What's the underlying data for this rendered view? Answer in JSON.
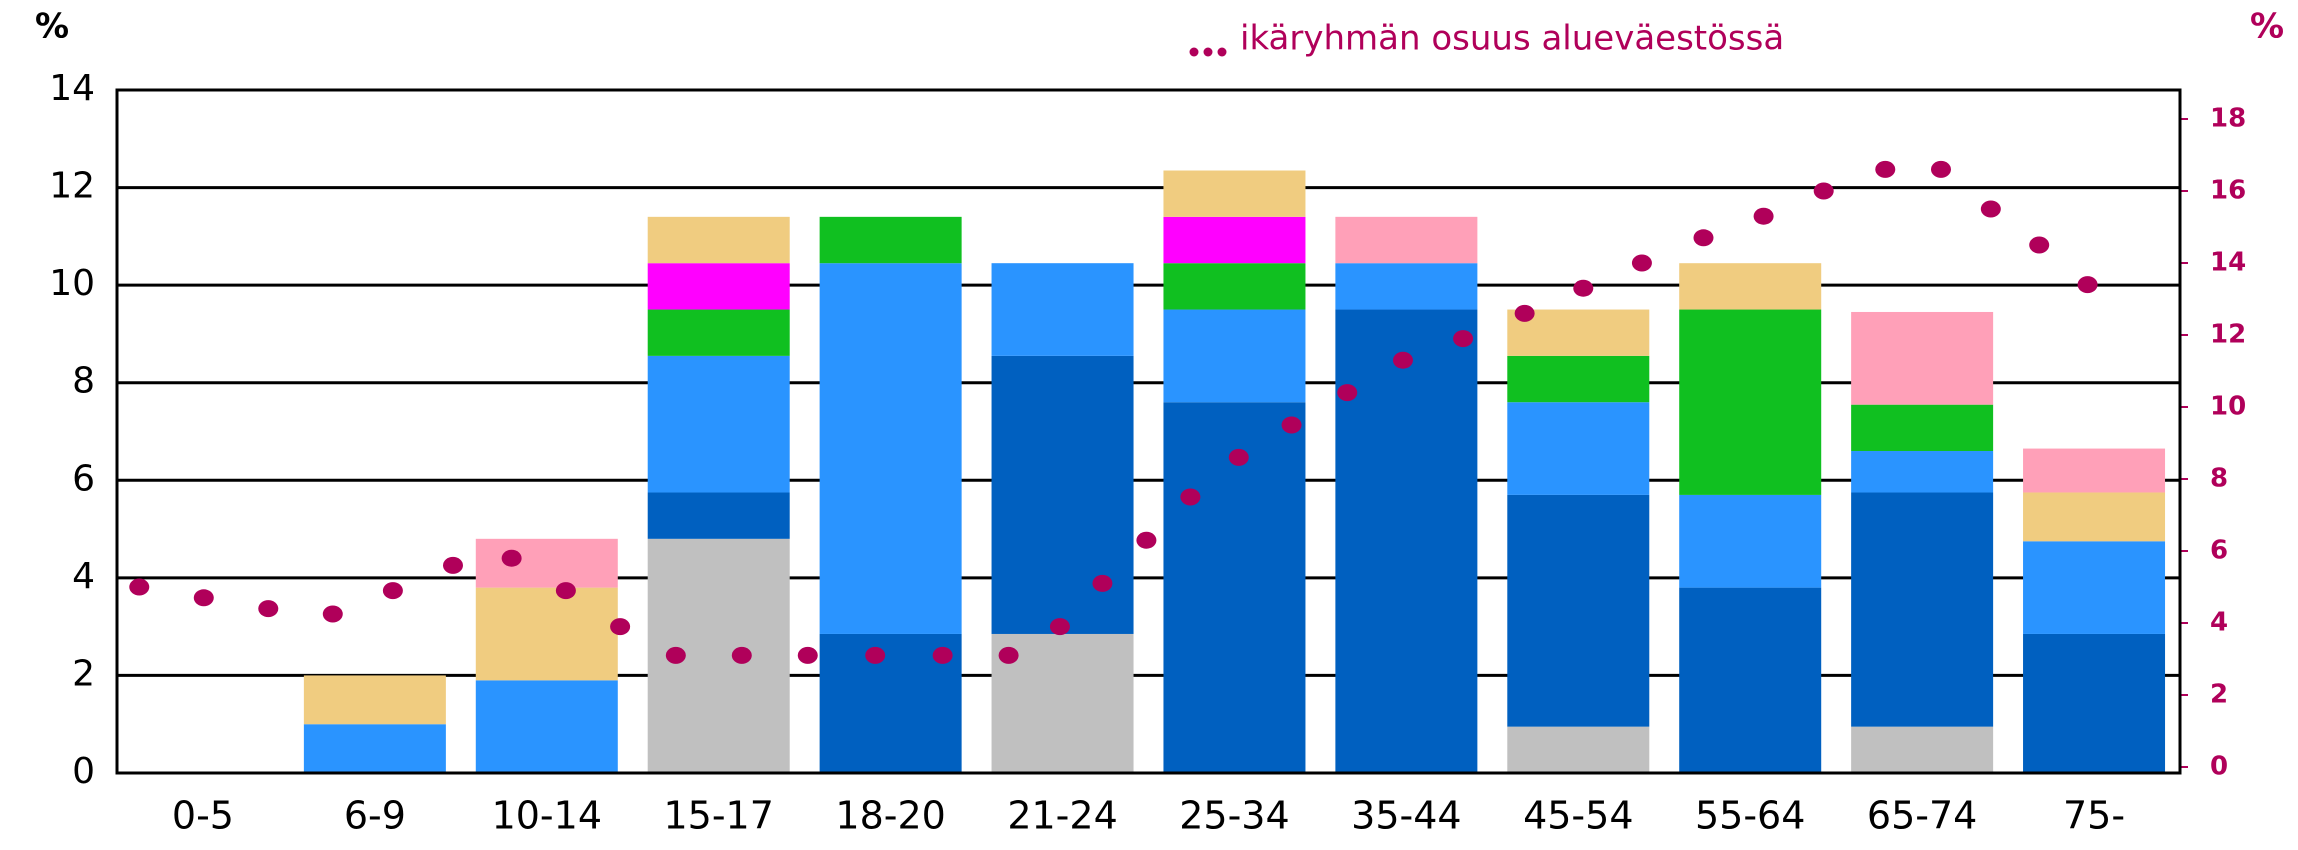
{
  "chart_data": {
    "type": "bar",
    "stacked": true,
    "y_unit_label": "%",
    "y2_unit_label": "%",
    "categories": [
      "0-5",
      "6-9",
      "10-14",
      "15-17",
      "18-20",
      "21-24",
      "25-34",
      "35-44",
      "45-54",
      "55-64",
      "65-74",
      "75-"
    ],
    "ylim": [
      0,
      14
    ],
    "yticks": [
      0,
      2,
      4,
      6,
      8,
      10,
      12,
      14
    ],
    "y2lim": [
      0,
      18
    ],
    "y2ticks": [
      0,
      2,
      4,
      6,
      8,
      10,
      12,
      14,
      16,
      18
    ],
    "grid": true,
    "series": [
      {
        "color": "#c0c0c0",
        "values": [
          0,
          0,
          0,
          4.8,
          0,
          2.85,
          0,
          0,
          0.95,
          0,
          0.95,
          0
        ]
      },
      {
        "color": "#0060c0",
        "values": [
          0,
          0,
          0,
          0.95,
          2.85,
          5.7,
          7.6,
          9.5,
          4.75,
          3.8,
          4.8,
          2.85
        ]
      },
      {
        "color": "#2a94ff",
        "values": [
          0,
          1,
          1.9,
          2.8,
          7.6,
          1.9,
          1.9,
          0.95,
          1.9,
          1.9,
          0.85,
          1.9
        ]
      },
      {
        "color": "#10c020",
        "values": [
          0,
          0,
          0,
          0.95,
          0.95,
          0,
          0.95,
          0,
          0.95,
          3.8,
          0.95,
          0
        ]
      },
      {
        "color": "#ff00ff",
        "values": [
          0,
          0,
          0,
          0.95,
          0,
          0,
          0.95,
          0,
          0,
          0,
          0,
          0
        ]
      },
      {
        "color": "#f0cc80",
        "values": [
          0,
          1,
          1.9,
          0.95,
          0,
          0,
          0.95,
          0,
          0.95,
          0.95,
          0,
          1
        ]
      },
      {
        "color": "#ffa0b8",
        "values": [
          0,
          0,
          1,
          0,
          0,
          0,
          0,
          0.95,
          0,
          0,
          1.9,
          0.9
        ]
      }
    ],
    "dot_series": {
      "name": "ikäryhmän osuus alueväestössä",
      "color": "#b0005a",
      "axis": "y2",
      "values": [
        5.0,
        4.7,
        4.4,
        4.25,
        4.9,
        5.6,
        5.8,
        4.9,
        3.9,
        3.1,
        3.1,
        3.1,
        3.1,
        3.1,
        3.1,
        3.9,
        5.1,
        6.3,
        7.5,
        8.6,
        9.5,
        10.4,
        11.3,
        11.9,
        12.6,
        13.3,
        14.0,
        14.7,
        15.3,
        16.0,
        16.6,
        16.6,
        15.5,
        14.5,
        13.4
      ]
    }
  }
}
